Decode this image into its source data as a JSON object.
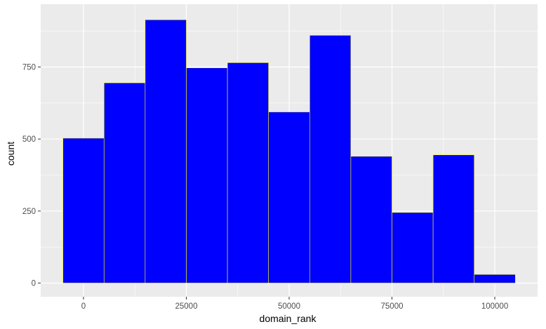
{
  "chart_data": {
    "type": "bar",
    "subtype": "histogram",
    "xlabel": "domain_rank",
    "ylabel": "count",
    "bin_centers": [
      0,
      10000,
      20000,
      30000,
      40000,
      50000,
      60000,
      70000,
      80000,
      90000,
      100000
    ],
    "bin_width": 10000,
    "values": [
      503,
      695,
      914,
      747,
      765,
      594,
      860,
      440,
      245,
      445,
      30
    ],
    "xlim": [
      -10400,
      110400
    ],
    "ylim": [
      0,
      960
    ],
    "x_ticks": [
      0,
      25000,
      50000,
      75000,
      100000
    ],
    "x_tick_labels": [
      "0",
      "25000",
      "50000",
      "75000",
      "100000"
    ],
    "y_ticks": [
      0,
      250,
      500,
      750
    ],
    "y_tick_labels": [
      "0",
      "250",
      "500",
      "750"
    ],
    "bar_fill": "#0000FF",
    "bar_outline": "#FFFF00",
    "panel_background": "#EBEBEB",
    "grid_color": "#FFFFFF",
    "grid": true
  }
}
